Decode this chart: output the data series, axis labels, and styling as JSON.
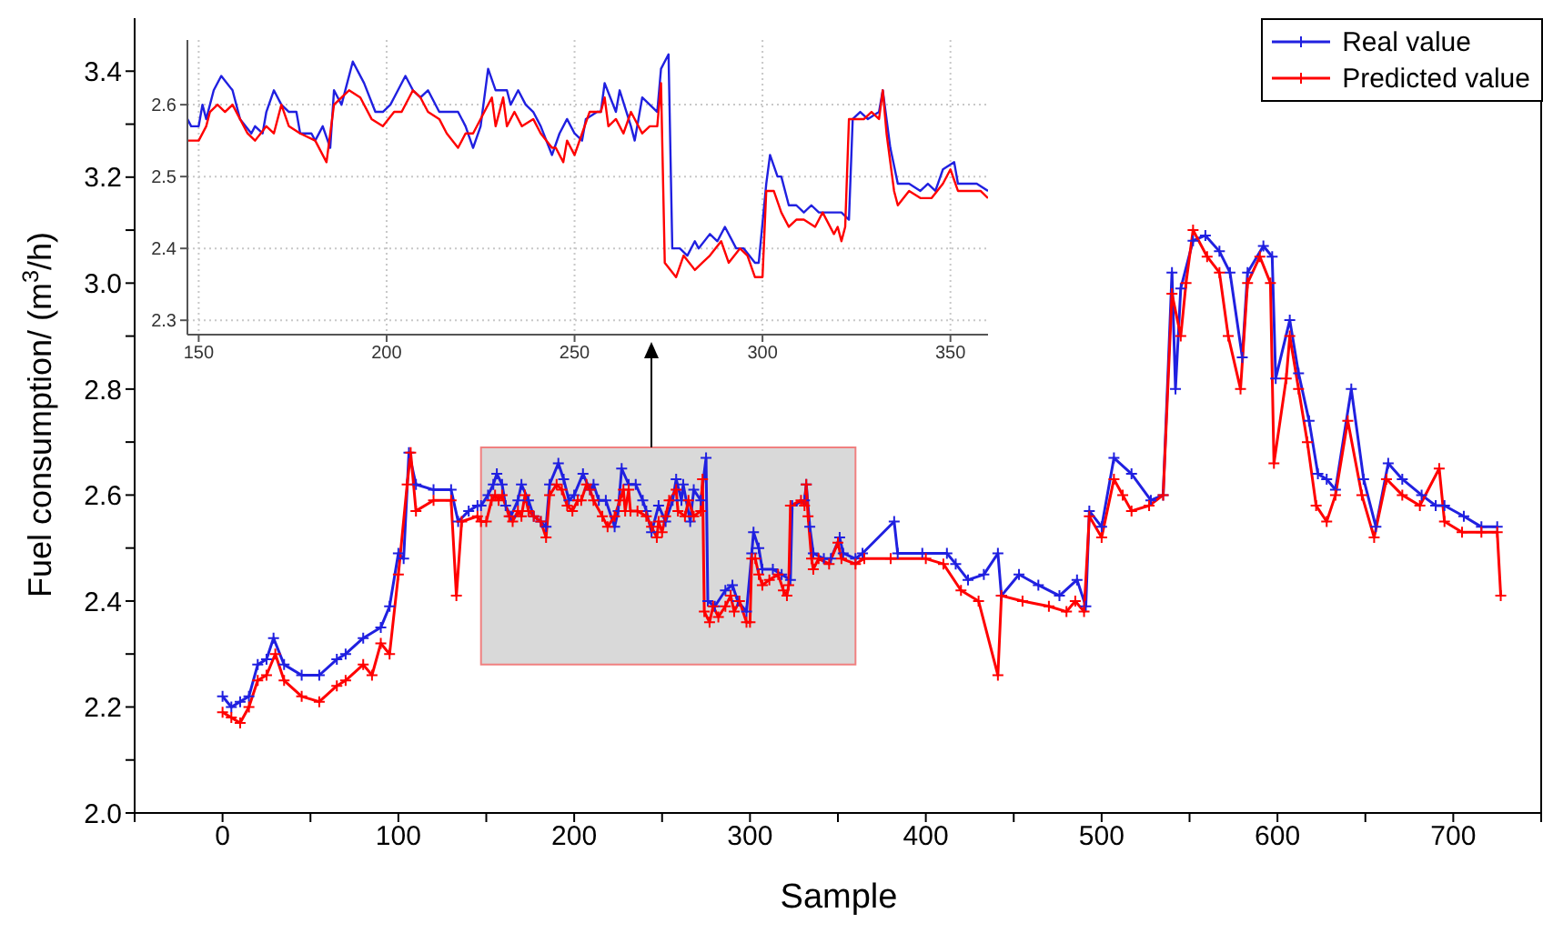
{
  "chart_data": [
    {
      "type": "line",
      "xlabel": "Sample",
      "ylabel": "Fuel consumption/ (m$^{3}$/h)",
      "marker": "cross",
      "legend": "top right",
      "grid": false,
      "xlim": [
        -50,
        750
      ],
      "xticks": [
        {
          "value": -50,
          "label": null
        },
        0,
        {
          "value": 50,
          "label": null
        },
        100,
        {
          "value": 150,
          "label": null
        },
        200,
        {
          "value": 250,
          "label": null
        },
        300,
        {
          "value": 350,
          "label": null
        },
        400,
        {
          "value": 450,
          "label": null
        },
        500,
        {
          "value": 550,
          "label": null
        },
        600,
        {
          "value": 650,
          "label": null
        },
        700,
        {
          "value": 750,
          "label": null
        }
      ],
      "ylim": [
        2.0,
        3.5
      ],
      "yticks": [
        {
          "value": 2.0,
          "label": "2.0"
        },
        {
          "value": 2.1,
          "label": null
        },
        2.2,
        {
          "value": 2.3,
          "label": null
        },
        2.4,
        {
          "value": 2.5,
          "label": null
        },
        2.6,
        {
          "value": 2.7,
          "label": null
        },
        2.8,
        {
          "value": 2.9,
          "label": null
        },
        {
          "value": 3.0,
          "label": "3.0"
        },
        {
          "value": 3.1,
          "label": null
        },
        3.2,
        {
          "value": 3.3,
          "label": null
        },
        3.4
      ],
      "bands": [
        {
          "axis": "x",
          "from": 147,
          "to": 360,
          "color": "#d9d9d9"
        }
      ],
      "series": [
        {
          "name": "Real value",
          "color": "#2020e0",
          "x": [
            0,
            5,
            10,
            15,
            20,
            25,
            29,
            35,
            45,
            55,
            65,
            70,
            80,
            90,
            95,
            100,
            103,
            106,
            110,
            120,
            130,
            134,
            140,
            145,
            147,
            151,
            154,
            156,
            159,
            161,
            164,
            168,
            170,
            174,
            177,
            181,
            184,
            186,
            191,
            194,
            197,
            200,
            205,
            209,
            211,
            214,
            218,
            223,
            225,
            227,
            231,
            235,
            239,
            241,
            244,
            248,
            252,
            256,
            258,
            261,
            262,
            266,
            268,
            272,
            275,
            276,
            280,
            286,
            290,
            293,
            298,
            301,
            302,
            305,
            307,
            313,
            318,
            323,
            324,
            331,
            332,
            334,
            336,
            342,
            346,
            351,
            353,
            360,
            364,
            382,
            384,
            398,
            412,
            417,
            424,
            433,
            441,
            443,
            453,
            464,
            476,
            486,
            491,
            493,
            500,
            507,
            517,
            528,
            535,
            540,
            542,
            545,
            552,
            559,
            567,
            573,
            580,
            583,
            592,
            597,
            599,
            607,
            612,
            618,
            623,
            628,
            633,
            642,
            649,
            656,
            663,
            671,
            682,
            690,
            695,
            706,
            716,
            725
          ],
          "values": [
            2.22,
            2.2,
            2.21,
            2.22,
            2.28,
            2.29,
            2.33,
            2.28,
            2.26,
            2.26,
            2.29,
            2.3,
            2.33,
            2.35,
            2.39,
            2.49,
            2.48,
            2.68,
            2.62,
            2.61,
            2.61,
            2.55,
            2.57,
            2.58,
            2.58,
            2.6,
            2.62,
            2.64,
            2.62,
            2.58,
            2.56,
            2.59,
            2.62,
            2.59,
            2.56,
            2.55,
            2.54,
            2.62,
            2.66,
            2.63,
            2.59,
            2.6,
            2.64,
            2.61,
            2.62,
            2.59,
            2.59,
            2.54,
            2.57,
            2.65,
            2.62,
            2.62,
            2.59,
            2.57,
            2.53,
            2.58,
            2.55,
            2.59,
            2.63,
            2.59,
            2.62,
            2.55,
            2.61,
            2.59,
            2.67,
            2.4,
            2.39,
            2.42,
            2.43,
            2.4,
            2.38,
            2.49,
            2.53,
            2.5,
            2.46,
            2.46,
            2.45,
            2.44,
            2.58,
            2.59,
            2.62,
            2.54,
            2.49,
            2.48,
            2.48,
            2.52,
            2.49,
            2.48,
            2.49,
            2.55,
            2.49,
            2.49,
            2.49,
            2.47,
            2.44,
            2.45,
            2.49,
            2.41,
            2.45,
            2.43,
            2.41,
            2.44,
            2.39,
            2.57,
            2.54,
            2.67,
            2.64,
            2.59,
            2.6,
            3.02,
            2.8,
            2.99,
            3.08,
            3.09,
            3.06,
            3.02,
            2.86,
            3.02,
            3.07,
            3.05,
            2.82,
            2.93,
            2.83,
            2.74,
            2.64,
            2.63,
            2.61,
            2.8,
            2.63,
            2.54,
            2.66,
            2.63,
            2.6,
            2.58,
            2.58,
            2.56,
            2.54,
            2.54
          ]
        },
        {
          "name": "Predicted value",
          "color": "#ff0000",
          "x": [
            0,
            5,
            10,
            15,
            20,
            25,
            30,
            35,
            45,
            55,
            65,
            70,
            80,
            85,
            90,
            95,
            100,
            105,
            107,
            110,
            120,
            130,
            133,
            136,
            145,
            147,
            150,
            153,
            155,
            157,
            159,
            163,
            165,
            168,
            170,
            172,
            174,
            177,
            181,
            184,
            186,
            190,
            193,
            196,
            199,
            202,
            204,
            207,
            209,
            211,
            216,
            219,
            223,
            226,
            228,
            229,
            231,
            232,
            236,
            241,
            244,
            247,
            248,
            250,
            252,
            254,
            258,
            259,
            263,
            265,
            268,
            272,
            273,
            274,
            277,
            279,
            282,
            286,
            289,
            291,
            294,
            298,
            300,
            301,
            303,
            305,
            307,
            311,
            316,
            319,
            321,
            322,
            323,
            329,
            331,
            332,
            333,
            335,
            336,
            339,
            345,
            350,
            352,
            360,
            365,
            380,
            400,
            410,
            420,
            430,
            441,
            443,
            455,
            470,
            480,
            485,
            490,
            493,
            500,
            507,
            512,
            517,
            527,
            535,
            540,
            545,
            548,
            552,
            560,
            567,
            572,
            579,
            583,
            590,
            596,
            598,
            605,
            607,
            612,
            617,
            622,
            628,
            633,
            640,
            648,
            655,
            662,
            671,
            681,
            692,
            695,
            705,
            716,
            725,
            727
          ],
          "values": [
            2.19,
            2.18,
            2.17,
            2.2,
            2.25,
            2.26,
            2.3,
            2.25,
            2.22,
            2.21,
            2.24,
            2.25,
            2.28,
            2.26,
            2.32,
            2.3,
            2.45,
            2.62,
            2.68,
            2.57,
            2.59,
            2.59,
            2.41,
            2.55,
            2.56,
            2.55,
            2.55,
            2.59,
            2.6,
            2.59,
            2.6,
            2.56,
            2.55,
            2.57,
            2.56,
            2.6,
            2.57,
            2.56,
            2.55,
            2.52,
            2.6,
            2.62,
            2.61,
            2.58,
            2.57,
            2.59,
            2.59,
            2.62,
            2.61,
            2.59,
            2.56,
            2.54,
            2.56,
            2.59,
            2.61,
            2.57,
            2.61,
            2.57,
            2.57,
            2.56,
            2.54,
            2.52,
            2.55,
            2.53,
            2.56,
            2.59,
            2.61,
            2.57,
            2.56,
            2.59,
            2.56,
            2.57,
            2.63,
            2.38,
            2.36,
            2.39,
            2.37,
            2.39,
            2.41,
            2.38,
            2.4,
            2.36,
            2.36,
            2.48,
            2.48,
            2.45,
            2.43,
            2.44,
            2.45,
            2.42,
            2.41,
            2.43,
            2.58,
            2.59,
            2.58,
            2.62,
            2.56,
            2.48,
            2.46,
            2.48,
            2.47,
            2.51,
            2.48,
            2.47,
            2.48,
            2.48,
            2.48,
            2.47,
            2.42,
            2.4,
            2.26,
            2.41,
            2.4,
            2.39,
            2.38,
            2.4,
            2.38,
            2.56,
            2.52,
            2.63,
            2.6,
            2.57,
            2.58,
            2.6,
            2.98,
            2.9,
            3.0,
            3.1,
            3.05,
            3.02,
            2.9,
            2.8,
            3.0,
            3.05,
            3.0,
            2.66,
            2.82,
            2.9,
            2.8,
            2.7,
            2.58,
            2.55,
            2.6,
            2.74,
            2.6,
            2.52,
            2.63,
            2.6,
            2.58,
            2.65,
            2.55,
            2.53,
            2.53,
            2.53,
            2.41
          ]
        }
      ]
    },
    {
      "type": "line",
      "grid": true,
      "xlim": [
        147,
        360
      ],
      "xticks": [
        150,
        200,
        250,
        300,
        350
      ],
      "ylim": [
        2.28,
        2.69
      ],
      "yticks": [
        2.3,
        2.4,
        2.5,
        2.6
      ],
      "series": [
        {
          "color": "#2020e0",
          "x": [
            147,
            148,
            150,
            151,
            152,
            154,
            156,
            159,
            161,
            164,
            165,
            167,
            168,
            170,
            172,
            174,
            176,
            177,
            180,
            181,
            183,
            185,
            186,
            188,
            191,
            194,
            197,
            199,
            201,
            202,
            205,
            207,
            209,
            211,
            214,
            216,
            219,
            221,
            223,
            225,
            227,
            229,
            232,
            233,
            235,
            237,
            239,
            241,
            244,
            246,
            248,
            250,
            252,
            253,
            256,
            257,
            258,
            261,
            262,
            265,
            266,
            268,
            270,
            272,
            273,
            275,
            276,
            278,
            280,
            282,
            283,
            286,
            288,
            290,
            293,
            295,
            298,
            299,
            301,
            302,
            304,
            305,
            307,
            309,
            311,
            313,
            315,
            319,
            321,
            323,
            324,
            326,
            328,
            331,
            332,
            334,
            336,
            339,
            342,
            344,
            346,
            348,
            351,
            352,
            355,
            357,
            360
          ],
          "values": [
            2.58,
            2.57,
            2.57,
            2.6,
            2.58,
            2.62,
            2.64,
            2.62,
            2.58,
            2.56,
            2.57,
            2.56,
            2.59,
            2.62,
            2.6,
            2.59,
            2.59,
            2.56,
            2.56,
            2.55,
            2.57,
            2.54,
            2.62,
            2.6,
            2.66,
            2.63,
            2.59,
            2.59,
            2.6,
            2.61,
            2.64,
            2.62,
            2.61,
            2.62,
            2.59,
            2.59,
            2.59,
            2.57,
            2.54,
            2.57,
            2.65,
            2.62,
            2.62,
            2.6,
            2.62,
            2.6,
            2.59,
            2.57,
            2.53,
            2.56,
            2.58,
            2.56,
            2.55,
            2.58,
            2.59,
            2.59,
            2.63,
            2.59,
            2.62,
            2.57,
            2.55,
            2.61,
            2.6,
            2.59,
            2.65,
            2.67,
            2.4,
            2.4,
            2.39,
            2.41,
            2.4,
            2.42,
            2.41,
            2.43,
            2.4,
            2.4,
            2.38,
            2.38,
            2.49,
            2.53,
            2.5,
            2.5,
            2.46,
            2.46,
            2.45,
            2.46,
            2.45,
            2.45,
            2.45,
            2.44,
            2.58,
            2.59,
            2.58,
            2.59,
            2.62,
            2.54,
            2.49,
            2.49,
            2.48,
            2.49,
            2.48,
            2.51,
            2.52,
            2.49,
            2.49,
            2.49,
            2.48
          ]
        },
        {
          "color": "#ff0000",
          "x": [
            147,
            150,
            152,
            153,
            155,
            157,
            159,
            161,
            163,
            165,
            168,
            170,
            172,
            174,
            177,
            181,
            184,
            186,
            190,
            193,
            196,
            199,
            202,
            204,
            207,
            209,
            211,
            214,
            216,
            219,
            221,
            223,
            226,
            228,
            229,
            231,
            232,
            234,
            236,
            239,
            241,
            244,
            245,
            247,
            248,
            250,
            252,
            254,
            257,
            258,
            259,
            261,
            263,
            265,
            268,
            270,
            272,
            273,
            274,
            277,
            279,
            282,
            284,
            286,
            289,
            291,
            294,
            296,
            298,
            300,
            301,
            303,
            305,
            307,
            309,
            311,
            314,
            316,
            319,
            320,
            321,
            322,
            323,
            327,
            329,
            331,
            332,
            333,
            335,
            336,
            339,
            342,
            345,
            348,
            350,
            352,
            356,
            358,
            360
          ],
          "values": [
            2.55,
            2.55,
            2.57,
            2.59,
            2.6,
            2.59,
            2.6,
            2.58,
            2.56,
            2.55,
            2.57,
            2.56,
            2.6,
            2.57,
            2.56,
            2.55,
            2.52,
            2.6,
            2.62,
            2.61,
            2.58,
            2.57,
            2.59,
            2.59,
            2.62,
            2.61,
            2.59,
            2.58,
            2.56,
            2.54,
            2.56,
            2.56,
            2.59,
            2.61,
            2.57,
            2.61,
            2.57,
            2.59,
            2.57,
            2.58,
            2.56,
            2.54,
            2.54,
            2.52,
            2.55,
            2.53,
            2.56,
            2.59,
            2.59,
            2.61,
            2.57,
            2.58,
            2.56,
            2.59,
            2.56,
            2.57,
            2.57,
            2.63,
            2.38,
            2.36,
            2.39,
            2.37,
            2.38,
            2.39,
            2.41,
            2.38,
            2.4,
            2.39,
            2.36,
            2.36,
            2.48,
            2.48,
            2.45,
            2.43,
            2.44,
            2.44,
            2.43,
            2.45,
            2.42,
            2.43,
            2.41,
            2.43,
            2.58,
            2.58,
            2.59,
            2.58,
            2.62,
            2.56,
            2.48,
            2.46,
            2.48,
            2.47,
            2.47,
            2.49,
            2.51,
            2.48,
            2.48,
            2.48,
            2.47
          ]
        }
      ]
    }
  ]
}
